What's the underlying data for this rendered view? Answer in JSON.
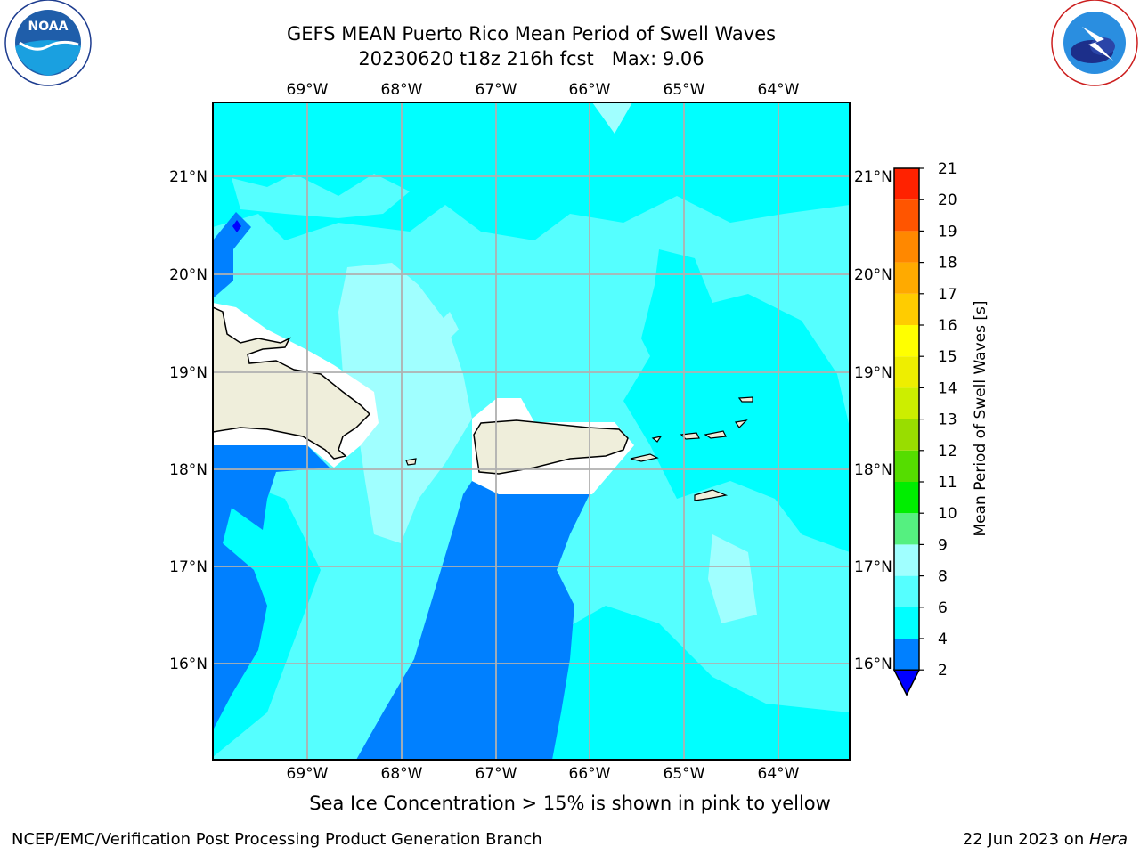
{
  "header": {
    "title_line1": "GEFS MEAN Puerto Rico Mean Period of Swell Waves",
    "title_line2": "20230620 t18z 216h fcst   Max: 9.06"
  },
  "logos": {
    "left": {
      "text": "NOAA",
      "ring_text": "NATIONAL OCEANIC AND ATMOSPHERIC ADMINISTRATION · U.S. DEPARTMENT OF COMMERCE"
    },
    "right": {
      "ring_text": "NATIONAL WEATHER SERVICE"
    }
  },
  "map": {
    "lon_labels": [
      "69°W",
      "68°W",
      "67°W",
      "66°W",
      "65°W",
      "64°W"
    ],
    "lat_labels": [
      "21°N",
      "20°N",
      "19°N",
      "18°N",
      "17°N",
      "16°N"
    ],
    "lon_range": [
      -70.0,
      -63.25
    ],
    "lat_range": [
      15.0,
      21.75
    ],
    "colors": {
      "c4_6": "#00ffff",
      "c6_8": "#55ffff",
      "c8_9": "#a0ffff",
      "c2_4": "#0080ff",
      "land": "#efeedb",
      "grid": "#b0b0b0"
    }
  },
  "colorbar": {
    "label": "Mean Period of Swell Waves [s]",
    "ticks": [
      "2",
      "4",
      "6",
      "8",
      "9",
      "10",
      "11",
      "12",
      "13",
      "14",
      "15",
      "16",
      "17",
      "18",
      "19",
      "20",
      "21"
    ],
    "colors": [
      "#0080ff",
      "#00ffff",
      "#55ffff",
      "#a0ffff",
      "#55f080",
      "#00ee00",
      "#55dd00",
      "#99dd00",
      "#ccee00",
      "#eeee00",
      "#ffff00",
      "#ffcc00",
      "#ffaa00",
      "#ff8800",
      "#ff5500",
      "#ff2200"
    ],
    "extend_color": "#0000ff"
  },
  "footer": {
    "note": "Sea Ice Concentration > 15% is shown in pink to yellow",
    "left": "NCEP/EMC/Verification Post Processing Product Generation Branch",
    "right_prefix": "22 Jun 2023 on ",
    "right_host": "Hera"
  }
}
